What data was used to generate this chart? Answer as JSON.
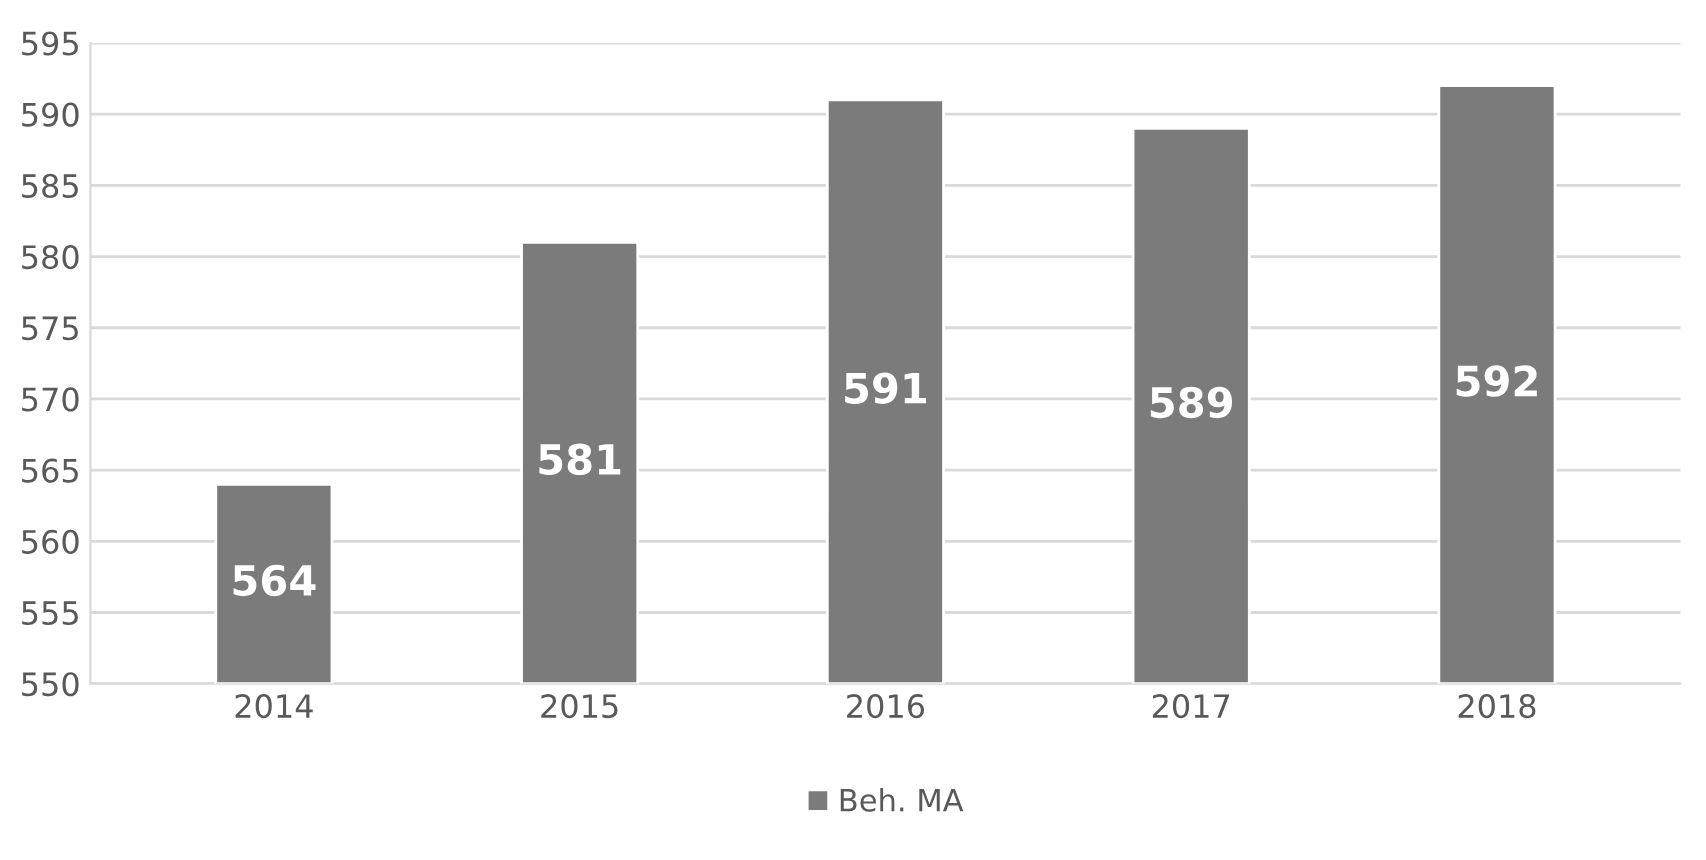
{
  "chart_data": {
    "type": "bar",
    "categories": [
      "2014",
      "2015",
      "2016",
      "2017",
      "2018"
    ],
    "series": [
      {
        "name": "Beh. MA",
        "color": "#7b7b7b",
        "values": [
          564,
          581,
          591,
          589,
          592
        ]
      }
    ],
    "ylim": [
      550,
      595
    ],
    "yticks": [
      550,
      555,
      560,
      565,
      570,
      575,
      580,
      585,
      590,
      595
    ],
    "grid": "y",
    "legend": "bottom",
    "data_labels": true
  }
}
